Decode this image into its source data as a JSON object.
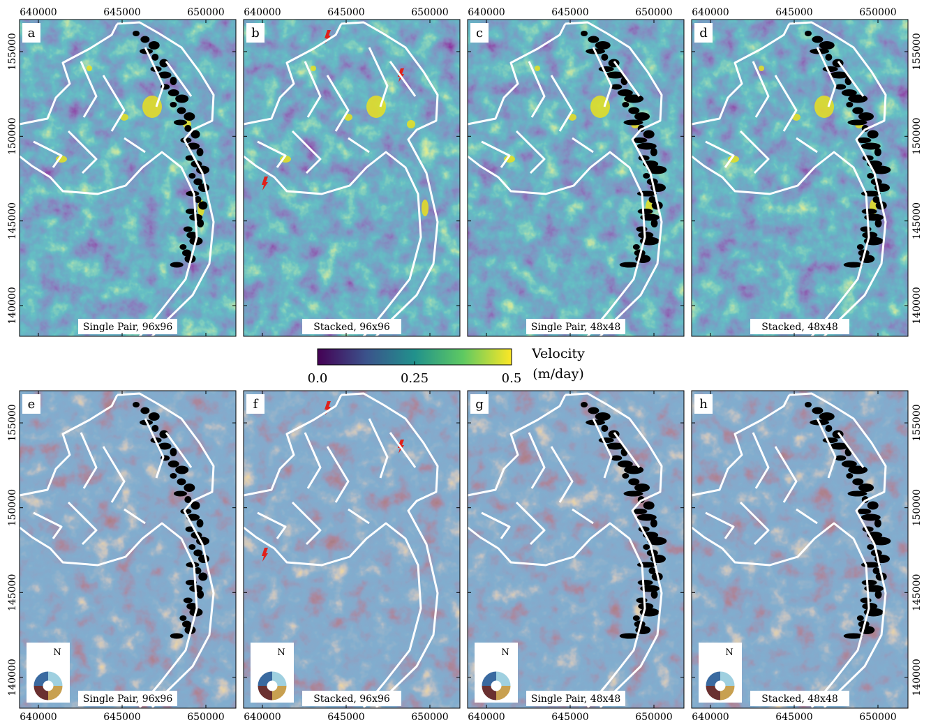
{
  "axes": {
    "xlim": [
      638875,
      651792
    ],
    "ylim": [
      138187,
      156895
    ],
    "xticks": [
      640000,
      645000,
      650000
    ],
    "yticks": [
      140000,
      145000,
      150000,
      155000
    ]
  },
  "panels": [
    {
      "letter": "a",
      "caption": "Single Pair, 96x96"
    },
    {
      "letter": "b",
      "caption": "Stacked, 96x96"
    },
    {
      "letter": "c",
      "caption": "Single Pair, 48x48"
    },
    {
      "letter": "d",
      "caption": "Stacked, 48x48"
    },
    {
      "letter": "e",
      "caption": "Single Pair, 96x96"
    },
    {
      "letter": "f",
      "caption": "Stacked, 96x96"
    },
    {
      "letter": "g",
      "caption": "Single Pair, 48x48"
    },
    {
      "letter": "h",
      "caption": "Stacked, 48x48"
    }
  ],
  "colorbar": {
    "label_line1": "Velocity",
    "label_line2": "(m/day)",
    "lim": [
      0,
      0.5
    ],
    "ticks": [
      {
        "value": 0,
        "label": "0.0"
      },
      0.25,
      0.5
    ]
  },
  "compass": {
    "label": "N"
  }
}
